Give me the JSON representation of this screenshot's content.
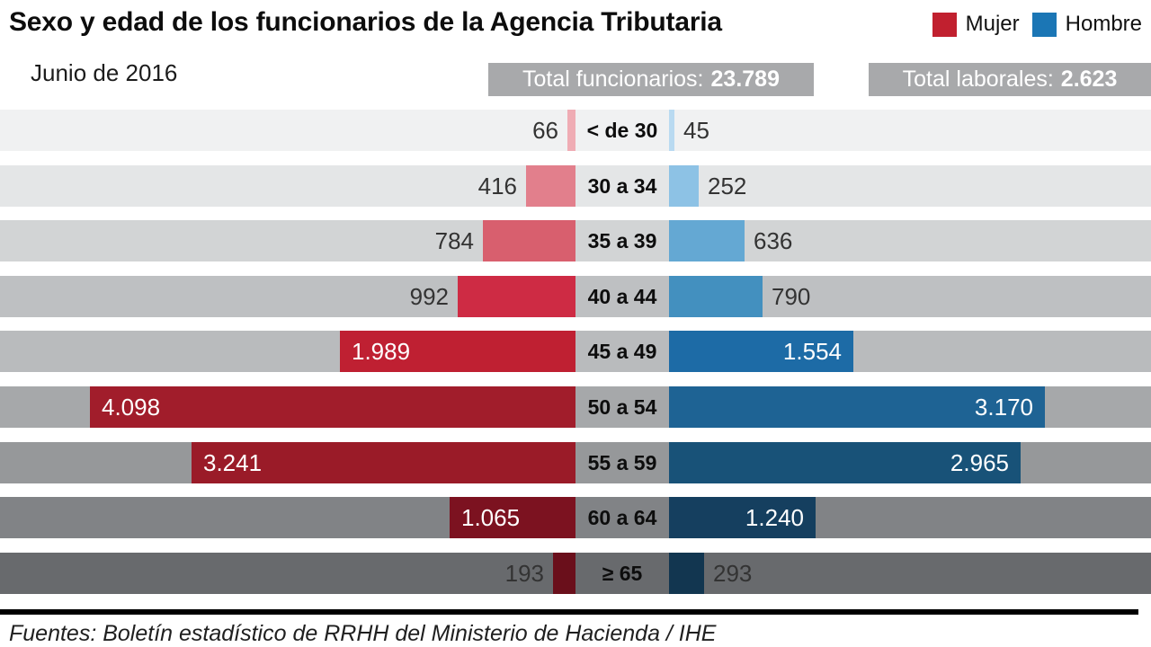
{
  "header": {
    "title": "Sexo y edad de los funcionarios de la Agencia Tributaria",
    "subtitle": "Junio de 2016",
    "legend": [
      {
        "label": "Mujer",
        "color": "#c1202f",
        "icon": "legend-swatch-red"
      },
      {
        "label": "Hombre",
        "color": "#1b76b5",
        "icon": "legend-swatch-blue"
      }
    ],
    "badges": [
      {
        "label": "Total funcionarios:",
        "value": "23.789"
      },
      {
        "label": "Total laborales:",
        "value": "2.623"
      }
    ]
  },
  "chart_data": {
    "type": "bar",
    "subtype": "population-pyramid-horizontal",
    "title": "Sexo y edad de los funcionarios de la Agencia Tributaria",
    "subtitle": "Junio de 2016",
    "categories": [
      "< de 30",
      "30 a 34",
      "35 a 39",
      "40 a 44",
      "45 a 49",
      "50 a 54",
      "55 a 59",
      "60 a 64",
      "≥ 65"
    ],
    "series": [
      {
        "name": "Mujer",
        "side": "left",
        "values": [
          66,
          416,
          784,
          992,
          1989,
          4098,
          3241,
          1065,
          193
        ],
        "labels": [
          "66",
          "416",
          "784",
          "992",
          "1.989",
          "4.098",
          "3.241",
          "1.065",
          "193"
        ],
        "colors": [
          "#efacb4",
          "#e27f8c",
          "#d85f6e",
          "#ce2b44",
          "#bf2032",
          "#a11d2b",
          "#9a1b28",
          "#7c1220",
          "#6a0f1b"
        ]
      },
      {
        "name": "Hombre",
        "side": "right",
        "values": [
          45,
          252,
          636,
          790,
          1554,
          3170,
          2965,
          1240,
          293
        ],
        "labels": [
          "45",
          "252",
          "636",
          "790",
          "1.554",
          "3.170",
          "2.965",
          "1.240",
          "293"
        ],
        "colors": [
          "#b9daf1",
          "#8dc2e5",
          "#64a8d3",
          "#4390bf",
          "#1d6ba6",
          "#1e6394",
          "#185278",
          "#153f5f",
          "#123650"
        ]
      }
    ],
    "row_backgrounds": [
      "#f0f1f2",
      "#e4e6e7",
      "#d2d4d5",
      "#bec0c2",
      "#b9bbbd",
      "#a6a8aa",
      "#96989a",
      "#818386",
      "#686a6d"
    ],
    "value_label_inside_threshold": 1000,
    "xlim": [
      0,
      4200
    ],
    "axis_hidden": true,
    "legend_position": "top-right"
  },
  "footer": {
    "text": "Fuentes: Boletín estadístico de RRHH del Ministerio de Hacienda / IHE"
  }
}
